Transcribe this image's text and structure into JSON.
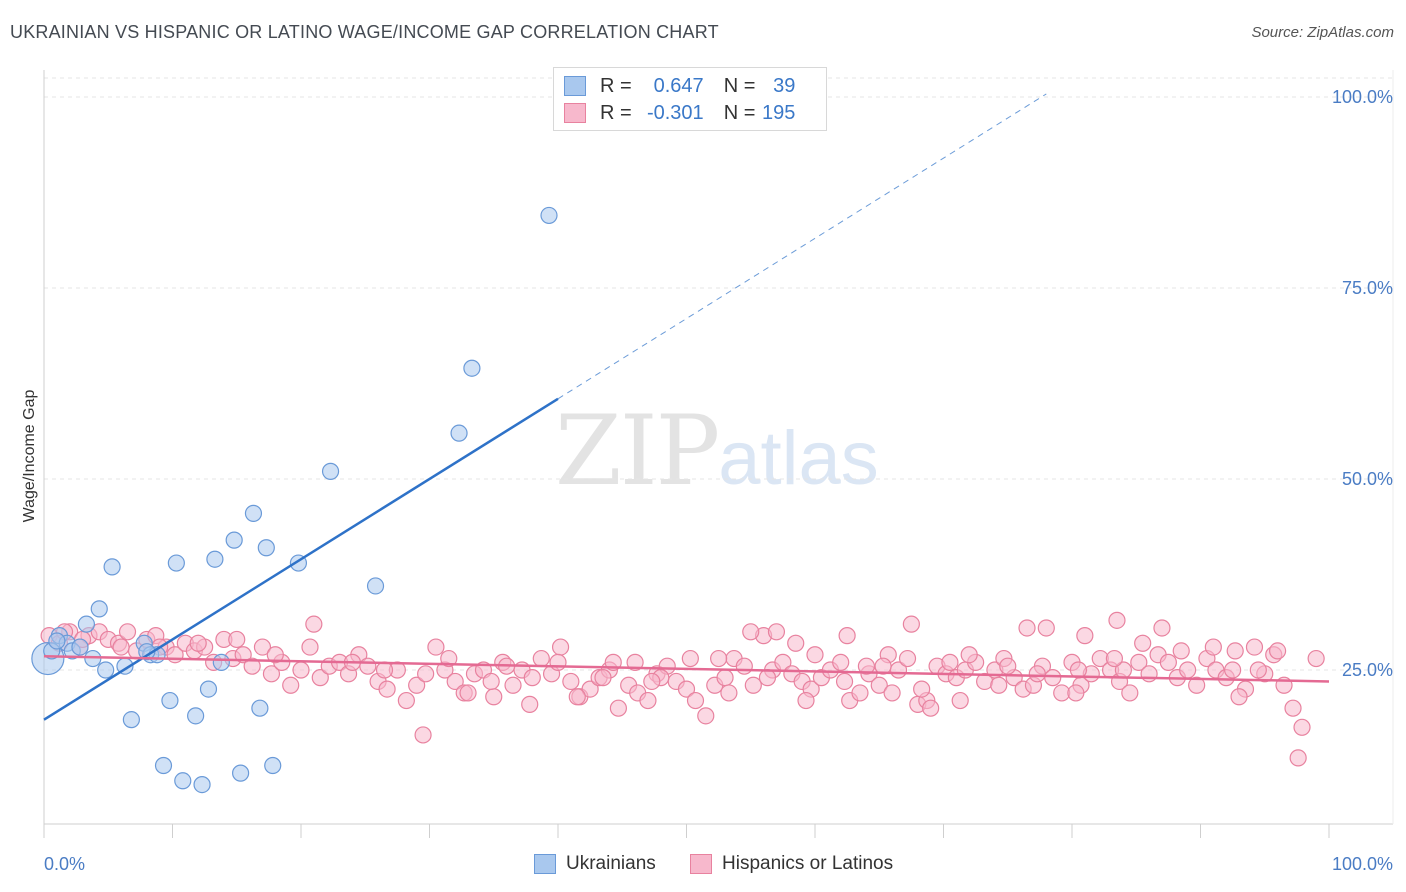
{
  "header": {
    "title": "UKRAINIAN VS HISPANIC OR LATINO WAGE/INCOME GAP CORRELATION CHART",
    "source": "Source: ZipAtlas.com"
  },
  "legend": {
    "r_label": "R =",
    "n_label": "N =",
    "rows": [
      {
        "r": "0.647",
        "n": "39",
        "color": "#a9c8ee",
        "border": "#6a9ad8"
      },
      {
        "r": "-0.301",
        "n": "195",
        "color": "#f7b8cc",
        "border": "#e8829f"
      }
    ]
  },
  "watermark": {
    "zip": "ZIP",
    "atlas": "atlas"
  },
  "chart_data": {
    "type": "scatter",
    "title": "UKRAINIAN VS HISPANIC OR LATINO WAGE/INCOME GAP CORRELATION CHART",
    "xlabel": "",
    "ylabel": "Wage/Income Gap",
    "xlim": [
      0,
      100
    ],
    "ylim": [
      0,
      105
    ],
    "x_tick_labels": [
      "0.0%",
      "100.0%"
    ],
    "y_tick_labels": [
      "25.0%",
      "50.0%",
      "75.0%",
      "100.0%"
    ],
    "y_ticks": [
      25,
      50,
      75,
      100
    ],
    "grid": true,
    "legend_position": "bottom-center",
    "series": [
      {
        "name": "Ukrainians",
        "color": "#a9c8ee",
        "stroke": "#6a9ad8",
        "line_color": "#2e72c8",
        "trend": {
          "x0": 0,
          "y0": 18.5,
          "x1": 40,
          "y1": 60.5,
          "dash_to_x": 78
        },
        "points": [
          [
            0.3,
            26.5
          ],
          [
            0.6,
            27.5
          ],
          [
            1.2,
            29.5
          ],
          [
            1.8,
            28.5
          ],
          [
            2.2,
            27.5
          ],
          [
            2.8,
            28.0
          ],
          [
            3.3,
            31.0
          ],
          [
            3.8,
            26.5
          ],
          [
            4.3,
            33.0
          ],
          [
            4.8,
            25.0
          ],
          [
            5.3,
            38.5
          ],
          [
            6.3,
            25.5
          ],
          [
            6.8,
            18.5
          ],
          [
            7.8,
            28.5
          ],
          [
            8.3,
            27.0
          ],
          [
            8.8,
            27.0
          ],
          [
            9.3,
            12.5
          ],
          [
            9.8,
            21.0
          ],
          [
            10.3,
            39.0
          ],
          [
            10.8,
            10.5
          ],
          [
            11.8,
            19.0
          ],
          [
            12.3,
            10.0
          ],
          [
            12.8,
            22.5
          ],
          [
            13.3,
            39.5
          ],
          [
            13.8,
            26.0
          ],
          [
            14.8,
            42.0
          ],
          [
            15.3,
            11.5
          ],
          [
            16.3,
            45.5
          ],
          [
            16.8,
            20.0
          ],
          [
            17.3,
            41.0
          ],
          [
            17.8,
            12.5
          ],
          [
            19.8,
            39.0
          ],
          [
            22.3,
            51.0
          ],
          [
            25.8,
            36.0
          ],
          [
            32.3,
            56.0
          ],
          [
            33.3,
            64.5
          ],
          [
            39.3,
            84.5
          ],
          [
            1.0,
            28.8
          ],
          [
            8.0,
            27.4
          ]
        ]
      },
      {
        "name": "Hispanics or Latinos",
        "color": "#f7b8cc",
        "stroke": "#e8829f",
        "line_color": "#e46a93",
        "trend": {
          "x0": 0,
          "y0": 26.8,
          "x1": 100,
          "y1": 23.5
        },
        "points": [
          [
            0.4,
            29.5
          ],
          [
            1.2,
            28.5
          ],
          [
            2.0,
            30.0
          ],
          [
            2.8,
            28.0
          ],
          [
            3.5,
            29.5
          ],
          [
            4.3,
            30.0
          ],
          [
            5.0,
            29.0
          ],
          [
            5.8,
            28.5
          ],
          [
            6.5,
            30.0
          ],
          [
            7.2,
            27.5
          ],
          [
            8.0,
            29.0
          ],
          [
            8.7,
            29.5
          ],
          [
            9.5,
            28.0
          ],
          [
            10.2,
            27.0
          ],
          [
            11.0,
            28.5
          ],
          [
            11.7,
            27.5
          ],
          [
            12.5,
            28.0
          ],
          [
            13.2,
            26.0
          ],
          [
            14.0,
            29.0
          ],
          [
            14.7,
            26.5
          ],
          [
            15.5,
            27.0
          ],
          [
            16.2,
            25.5
          ],
          [
            17.0,
            28.0
          ],
          [
            17.7,
            24.5
          ],
          [
            18.5,
            26.0
          ],
          [
            19.2,
            23.0
          ],
          [
            20.0,
            25.0
          ],
          [
            20.7,
            28.0
          ],
          [
            21.5,
            24.0
          ],
          [
            22.2,
            25.5
          ],
          [
            23.0,
            26.0
          ],
          [
            23.7,
            24.5
          ],
          [
            24.5,
            27.0
          ],
          [
            25.2,
            25.5
          ],
          [
            26.0,
            23.5
          ],
          [
            26.7,
            22.5
          ],
          [
            27.5,
            25.0
          ],
          [
            28.2,
            21.0
          ],
          [
            29.0,
            23.0
          ],
          [
            29.7,
            24.5
          ],
          [
            30.5,
            28.0
          ],
          [
            31.2,
            25.0
          ],
          [
            32.0,
            23.5
          ],
          [
            32.7,
            22.0
          ],
          [
            33.5,
            24.5
          ],
          [
            34.2,
            25.0
          ],
          [
            35.0,
            21.5
          ],
          [
            35.7,
            26.0
          ],
          [
            36.5,
            23.0
          ],
          [
            37.2,
            25.0
          ],
          [
            38.0,
            24.0
          ],
          [
            38.7,
            26.5
          ],
          [
            39.5,
            24.5
          ],
          [
            40.2,
            28.0
          ],
          [
            41.0,
            23.5
          ],
          [
            41.7,
            21.5
          ],
          [
            42.5,
            22.5
          ],
          [
            43.2,
            24.0
          ],
          [
            44.0,
            25.0
          ],
          [
            44.7,
            20.0
          ],
          [
            45.5,
            23.0
          ],
          [
            46.2,
            22.0
          ],
          [
            47.0,
            21.0
          ],
          [
            47.7,
            24.5
          ],
          [
            48.5,
            25.5
          ],
          [
            49.2,
            23.5
          ],
          [
            50.0,
            22.5
          ],
          [
            50.7,
            21.0
          ],
          [
            51.5,
            19.0
          ],
          [
            52.2,
            23.0
          ],
          [
            53.0,
            24.0
          ],
          [
            53.7,
            26.5
          ],
          [
            54.5,
            25.5
          ],
          [
            55.2,
            23.0
          ],
          [
            56.0,
            29.5
          ],
          [
            56.7,
            25.0
          ],
          [
            57.5,
            26.0
          ],
          [
            58.2,
            24.5
          ],
          [
            59.0,
            23.5
          ],
          [
            59.7,
            22.5
          ],
          [
            60.5,
            24.0
          ],
          [
            61.2,
            25.0
          ],
          [
            62.0,
            26.0
          ],
          [
            62.7,
            21.0
          ],
          [
            63.5,
            22.0
          ],
          [
            64.2,
            24.5
          ],
          [
            65.0,
            23.0
          ],
          [
            65.7,
            27.0
          ],
          [
            66.5,
            25.0
          ],
          [
            67.2,
            26.5
          ],
          [
            68.0,
            20.5
          ],
          [
            68.7,
            21.0
          ],
          [
            69.5,
            25.5
          ],
          [
            70.2,
            24.5
          ],
          [
            71.0,
            24.0
          ],
          [
            71.7,
            25.0
          ],
          [
            72.5,
            26.0
          ],
          [
            73.2,
            23.5
          ],
          [
            74.0,
            25.0
          ],
          [
            74.7,
            26.5
          ],
          [
            75.5,
            24.0
          ],
          [
            76.2,
            22.5
          ],
          [
            77.0,
            23.0
          ],
          [
            77.7,
            25.5
          ],
          [
            78.5,
            24.0
          ],
          [
            79.2,
            22.0
          ],
          [
            80.0,
            26.0
          ],
          [
            80.7,
            23.0
          ],
          [
            81.5,
            24.5
          ],
          [
            82.2,
            26.5
          ],
          [
            83.0,
            25.0
          ],
          [
            83.7,
            23.5
          ],
          [
            84.5,
            22.0
          ],
          [
            85.2,
            26.0
          ],
          [
            86.0,
            24.5
          ],
          [
            86.7,
            27.0
          ],
          [
            87.5,
            26.0
          ],
          [
            88.2,
            24.0
          ],
          [
            89.0,
            25.0
          ],
          [
            89.7,
            23.0
          ],
          [
            90.5,
            26.5
          ],
          [
            91.2,
            25.0
          ],
          [
            92.0,
            24.0
          ],
          [
            92.7,
            27.5
          ],
          [
            93.5,
            22.5
          ],
          [
            94.2,
            28.0
          ],
          [
            95.0,
            24.5
          ],
          [
            95.7,
            27.0
          ],
          [
            96.5,
            23.0
          ],
          [
            97.2,
            20.0
          ],
          [
            97.9,
            17.5
          ],
          [
            97.6,
            13.5
          ],
          [
            99.0,
            26.5
          ],
          [
            21.0,
            31.0
          ],
          [
            29.5,
            16.5
          ],
          [
            33.0,
            22.0
          ],
          [
            36.0,
            25.5
          ],
          [
            40.0,
            26.0
          ],
          [
            43.5,
            24.0
          ],
          [
            46.0,
            26.0
          ],
          [
            48.0,
            24.0
          ],
          [
            52.5,
            26.5
          ],
          [
            55.0,
            30.0
          ],
          [
            57.0,
            30.0
          ],
          [
            58.5,
            28.5
          ],
          [
            60.0,
            27.0
          ],
          [
            62.5,
            29.5
          ],
          [
            64.0,
            25.5
          ],
          [
            66.0,
            22.0
          ],
          [
            67.5,
            31.0
          ],
          [
            69.0,
            20.0
          ],
          [
            70.5,
            26.0
          ],
          [
            72.0,
            27.0
          ],
          [
            75.0,
            25.5
          ],
          [
            76.5,
            30.5
          ],
          [
            78.0,
            30.5
          ],
          [
            80.5,
            25.0
          ],
          [
            81.0,
            29.5
          ],
          [
            83.5,
            31.5
          ],
          [
            84.0,
            25.0
          ],
          [
            85.5,
            28.5
          ],
          [
            87.0,
            30.5
          ],
          [
            88.5,
            27.5
          ],
          [
            91.0,
            28.0
          ],
          [
            92.5,
            25.0
          ],
          [
            93.0,
            21.5
          ],
          [
            94.5,
            25.0
          ],
          [
            96.0,
            27.5
          ],
          [
            24.0,
            26.0
          ],
          [
            18.0,
            27.0
          ],
          [
            15.0,
            29.0
          ],
          [
            12.0,
            28.5
          ],
          [
            9.0,
            28.0
          ],
          [
            6.0,
            28.0
          ],
          [
            3.0,
            29.0
          ],
          [
            1.6,
            30.0
          ],
          [
            26.5,
            25.0
          ],
          [
            31.5,
            26.5
          ],
          [
            34.8,
            23.5
          ],
          [
            37.8,
            20.5
          ],
          [
            41.5,
            21.5
          ],
          [
            44.3,
            26.0
          ],
          [
            47.3,
            23.5
          ],
          [
            50.3,
            26.5
          ],
          [
            53.3,
            22.0
          ],
          [
            56.3,
            24.0
          ],
          [
            59.3,
            21.0
          ],
          [
            62.3,
            23.5
          ],
          [
            65.3,
            25.5
          ],
          [
            68.3,
            22.5
          ],
          [
            71.3,
            21.0
          ],
          [
            74.3,
            23.0
          ],
          [
            77.3,
            24.5
          ],
          [
            80.3,
            22.0
          ],
          [
            83.3,
            26.5
          ]
        ]
      }
    ]
  }
}
